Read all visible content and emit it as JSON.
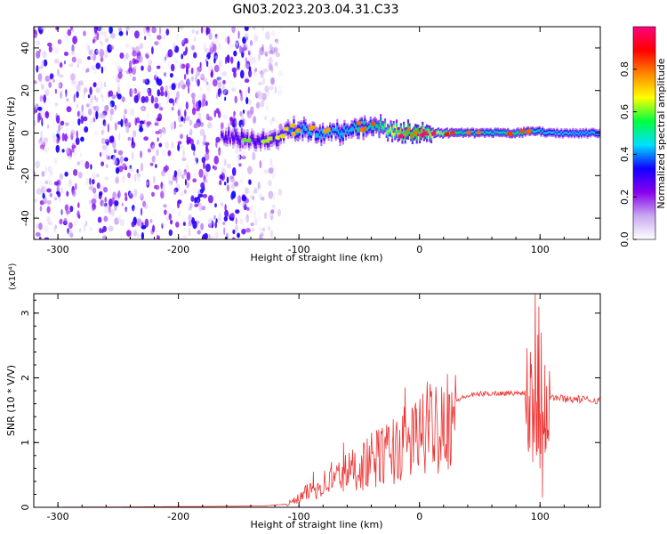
{
  "title": "GN03.2023.203.04.31.C33",
  "chart_data": [
    {
      "type": "heatmap",
      "xlabel": "Height of straight line (km)",
      "ylabel": "Frequency (Hz)",
      "xlim": [
        -320,
        150
      ],
      "ylim": [
        -50,
        50
      ],
      "xticks": [
        -300,
        -200,
        -100,
        0,
        100
      ],
      "yticks": [
        -40,
        -20,
        0,
        20,
        40
      ],
      "colorbar": {
        "label": "Normalized spectral amplitude",
        "range": [
          0.0,
          1.0
        ],
        "ticks": [
          "0.0",
          "0.2",
          "0.4",
          "0.6",
          "0.8"
        ],
        "colors": [
          "#ffffff",
          "#c8a8f0",
          "#8800ee",
          "#1100ff",
          "#00e0ff",
          "#00ff40",
          "#ffff00",
          "#ff8800",
          "#ff0000",
          "#ff0080"
        ]
      },
      "noise_region": {
        "x": [
          -320,
          -115
        ],
        "max_amplitude": 0.35
      },
      "ridge": [
        {
          "x": -165,
          "freq": -1,
          "amp": 0.3
        },
        {
          "x": -140,
          "freq": -3,
          "amp": 0.3
        },
        {
          "x": -120,
          "freq": -3,
          "amp": 0.35
        },
        {
          "x": -110,
          "freq": 1,
          "amp": 0.4
        },
        {
          "x": -100,
          "freq": 2,
          "amp": 0.45
        },
        {
          "x": -90,
          "freq": 1,
          "amp": 0.45
        },
        {
          "x": -80,
          "freq": 0,
          "amp": 0.45
        },
        {
          "x": -70,
          "freq": 0,
          "amp": 0.45
        },
        {
          "x": -60,
          "freq": 1,
          "amp": 0.45
        },
        {
          "x": -50,
          "freq": 3,
          "amp": 0.5
        },
        {
          "x": -40,
          "freq": 4,
          "amp": 0.5
        },
        {
          "x": -30,
          "freq": 2,
          "amp": 0.6
        },
        {
          "x": -20,
          "freq": 1,
          "amp": 0.7
        },
        {
          "x": -10,
          "freq": 0,
          "amp": 0.8
        },
        {
          "x": 0,
          "freq": 0,
          "amp": 0.8
        },
        {
          "x": 20,
          "freq": 0,
          "amp": 0.6
        },
        {
          "x": 40,
          "freq": 0,
          "amp": 0.5
        },
        {
          "x": 60,
          "freq": 0,
          "amp": 0.5
        },
        {
          "x": 80,
          "freq": 0,
          "amp": 0.55
        },
        {
          "x": 95,
          "freq": 1,
          "amp": 0.5
        },
        {
          "x": 110,
          "freq": 0,
          "amp": 0.45
        },
        {
          "x": 130,
          "freq": 0,
          "amp": 0.45
        },
        {
          "x": 150,
          "freq": 0,
          "amp": 0.45
        }
      ]
    },
    {
      "type": "line",
      "xlabel": "Height of straight line (km)",
      "ylabel": "SNR (10 * V/V)",
      "exponent_label": "(x10⁴)",
      "xlim": [
        -320,
        150
      ],
      "ylim": [
        0,
        3.3
      ],
      "xticks": [
        -300,
        -200,
        -100,
        0,
        100
      ],
      "yticks": [
        0,
        1,
        2,
        3
      ],
      "color": "#ee3333",
      "envelope": {
        "x": [
          -320,
          -200,
          -130,
          -110,
          -100,
          -90,
          -80,
          -70,
          -60,
          -50,
          -40,
          -30,
          -20,
          -10,
          0,
          10,
          20,
          30,
          40,
          50,
          60,
          70,
          80,
          85,
          90,
          95,
          100,
          105,
          110,
          120,
          130,
          140,
          150
        ],
        "y": [
          0.0,
          0.01,
          0.02,
          0.05,
          0.15,
          0.3,
          0.4,
          0.5,
          0.6,
          0.7,
          0.8,
          0.9,
          1.0,
          1.1,
          1.25,
          1.4,
          1.55,
          1.65,
          1.72,
          1.75,
          1.76,
          1.76,
          1.76,
          1.77,
          1.78,
          1.8,
          1.75,
          1.72,
          1.7,
          1.68,
          1.67,
          1.66,
          1.65
        ]
      },
      "spikes": [
        {
          "x": -88,
          "y": 0.55
        },
        {
          "x": -73,
          "y": 0.7
        },
        {
          "x": -63,
          "y": 1.0
        },
        {
          "x": -48,
          "y": 0.8
        },
        {
          "x": -34,
          "y": 1.05
        },
        {
          "x": -22,
          "y": 1.1
        },
        {
          "x": -12,
          "y": 1.85
        },
        {
          "x": -3,
          "y": 1.0
        },
        {
          "x": 8,
          "y": 1.5
        },
        {
          "x": 20,
          "y": 1.6
        },
        {
          "x": 92,
          "y": 2.4
        },
        {
          "x": 96,
          "y": 3.3
        },
        {
          "x": 99,
          "y": 3.1
        },
        {
          "x": 101,
          "y": 2.7
        },
        {
          "x": 104,
          "y": 2.2
        }
      ],
      "dips": [
        {
          "x": 94,
          "y": 0.7
        },
        {
          "x": 97,
          "y": 0.8
        },
        {
          "x": 100,
          "y": 0.6
        },
        {
          "x": 102,
          "y": 0.15
        },
        {
          "x": 105,
          "y": 0.9
        }
      ]
    }
  ]
}
